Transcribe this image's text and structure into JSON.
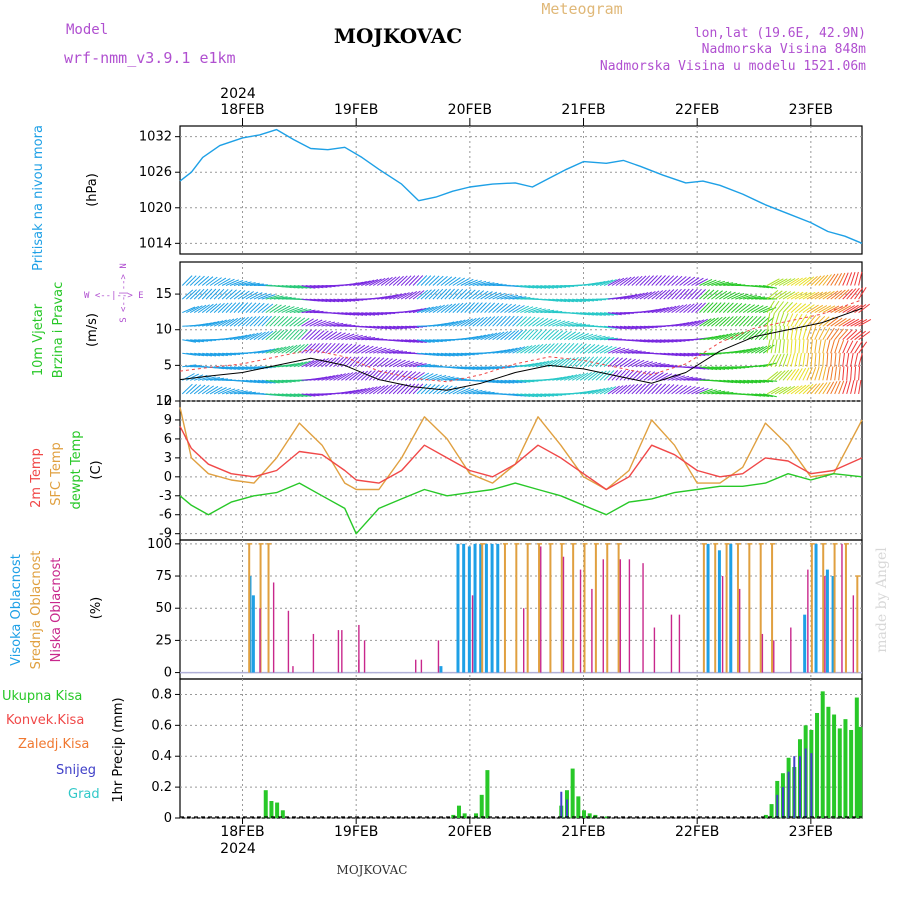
{
  "header": {
    "model_label": "Model",
    "model_name": "wrf-nmm_v3.9.1  e1km",
    "station": "MOJKOVAC",
    "product": "Meteogram",
    "coords": "lon,lat (19.6E, 42.9N)",
    "altitude": "Nadmorska Visina 848m",
    "model_altitude": "Nadmorska Visina u modelu 1521.06m"
  },
  "footer": {
    "station": "MOJKOVAC",
    "credit": "made by Angel"
  },
  "time_axis": {
    "year": "2024",
    "days": [
      "18FEB",
      "19FEB",
      "20FEB",
      "21FEB",
      "22FEB",
      "23FEB"
    ],
    "range_days": [
      -0.55,
      5.45
    ]
  },
  "colors": {
    "pressure": "#1ea0e6",
    "temp2m": "#f04848",
    "sfc_temp": "#e0a040",
    "dewpoint": "#28c828",
    "cloud_high": "#1ea0e6",
    "cloud_mid": "#e0a040",
    "cloud_low": "#c8288c",
    "precip_total": "#28c828",
    "precip_snow": "#4040c8",
    "purple_text": "#b050d0",
    "grid": "#999999"
  },
  "panels": {
    "pressure": {
      "label": "Pritisak na nivou mora",
      "unit": "(hPa)"
    },
    "wind": {
      "label1": "10m  Vjetar",
      "label2": "Brzina i Pravac",
      "unit": "(m/s)",
      "compass": "W <--|--> E",
      "compass_side": "S <--|--> N"
    },
    "temp": {
      "label1": "2m Temp",
      "label2": "SFC Temp",
      "label3": "dewpt Temp",
      "unit": "(C)"
    },
    "cloud": {
      "label1": "Visoka Oblacnost",
      "label2": "Srednja Oblacnost",
      "label3": "Niska Oblacnost",
      "unit": "(%)"
    },
    "precip": {
      "label1": "Ukupna Kisa",
      "label2": "Konvek.Kisa",
      "label3": "Zaledj.Kisa",
      "label4": "Snijeg",
      "label5": "Grad",
      "unit": "1hr Precip (mm)"
    }
  },
  "chart_data": [
    {
      "type": "line",
      "title": "Pritisak na nivou mora",
      "ylabel": "(hPa)",
      "ylim": [
        1012.2,
        1033.8
      ],
      "yticks": [
        1014,
        1020,
        1026,
        1032
      ],
      "x_days": [
        -0.55,
        -0.45,
        -0.35,
        -0.2,
        0.0,
        0.15,
        0.3,
        0.45,
        0.6,
        0.75,
        0.9,
        1.05,
        1.2,
        1.4,
        1.55,
        1.7,
        1.85,
        2.0,
        2.2,
        2.4,
        2.55,
        2.7,
        2.85,
        3.0,
        3.2,
        3.35,
        3.5,
        3.7,
        3.9,
        4.05,
        4.2,
        4.4,
        4.6,
        4.8,
        5.0,
        5.15,
        5.3,
        5.45
      ],
      "series": [
        {
          "values": [
            1024.5,
            1026,
            1028.5,
            1030.5,
            1031.8,
            1032.3,
            1033.2,
            1031.5,
            1030,
            1029.8,
            1030.2,
            1028.5,
            1026.5,
            1024,
            1021.2,
            1021.8,
            1022.8,
            1023.5,
            1024,
            1024.2,
            1023.5,
            1025,
            1026.5,
            1027.8,
            1027.5,
            1028,
            1027,
            1025.5,
            1024.2,
            1024.5,
            1023.8,
            1022.3,
            1020.5,
            1019,
            1017.5,
            1016,
            1015.2,
            1014
          ]
        }
      ]
    },
    {
      "type": "line",
      "title": "10m Vjetar Brzina i Pravac",
      "ylabel": "(m/s)",
      "ylim": [
        0,
        19.5
      ],
      "yticks": [
        0,
        5,
        10,
        15
      ],
      "x_days": [
        -0.55,
        -0.3,
        0.0,
        0.3,
        0.6,
        0.9,
        1.2,
        1.5,
        1.8,
        2.1,
        2.4,
        2.7,
        3.0,
        3.3,
        3.6,
        3.9,
        4.2,
        4.5,
        4.8,
        5.1,
        5.45
      ],
      "series": [
        {
          "name": "speed",
          "values": [
            3,
            3.5,
            4,
            5,
            6,
            5,
            3,
            2,
            1.5,
            2.5,
            4,
            5,
            4.5,
            3.5,
            2.5,
            4,
            7,
            9,
            10,
            11,
            13
          ]
        }
      ]
    },
    {
      "type": "line",
      "title": "Temp",
      "ylabel": "(C)",
      "ylim": [
        -10,
        12
      ],
      "yticks": [
        -9,
        -6,
        -3,
        0,
        3,
        6,
        9,
        12
      ],
      "x_days": [
        -0.55,
        -0.45,
        -0.3,
        -0.1,
        0.1,
        0.3,
        0.5,
        0.7,
        0.9,
        1.0,
        1.2,
        1.4,
        1.6,
        1.8,
        2.0,
        2.2,
        2.4,
        2.6,
        2.8,
        3.0,
        3.2,
        3.4,
        3.6,
        3.8,
        4.0,
        4.2,
        4.4,
        4.6,
        4.8,
        5.0,
        5.2,
        5.45
      ],
      "series": [
        {
          "name": "2m Temp",
          "values": [
            8,
            4.5,
            2,
            0.5,
            0,
            1,
            4,
            3.5,
            1,
            -0.5,
            -1,
            1,
            5,
            3,
            1,
            0,
            2,
            5,
            3,
            0.5,
            -2,
            0,
            5,
            3.5,
            1,
            0,
            0.5,
            3,
            2.5,
            0.5,
            1,
            3
          ]
        },
        {
          "name": "SFC Temp",
          "values": [
            11,
            3,
            0.5,
            -0.5,
            -1,
            3,
            8.5,
            5,
            -1,
            -2,
            -2,
            3,
            9.5,
            6,
            0.5,
            -1,
            2,
            9.5,
            5,
            0,
            -2,
            1,
            9,
            5,
            -1,
            -1,
            1.5,
            8.5,
            5,
            0,
            0.5,
            9
          ]
        },
        {
          "name": "dewpt Temp",
          "values": [
            -3,
            -4.5,
            -6,
            -4,
            -3,
            -2.5,
            -1,
            -3,
            -5,
            -9,
            -5,
            -3.5,
            -2,
            -3,
            -2.5,
            -2,
            -1,
            -2,
            -3,
            -4.5,
            -6,
            -4,
            -3.5,
            -2.5,
            -2,
            -1.5,
            -1.5,
            -1,
            0.5,
            -0.5,
            0.5,
            0
          ]
        }
      ]
    },
    {
      "type": "bar",
      "title": "Oblacnost",
      "ylabel": "(%)",
      "ylim": [
        -5,
        103
      ],
      "yticks": [
        0,
        25,
        50,
        75,
        100
      ],
      "series": [
        {
          "name": "Visoka Oblacnost",
          "bars": [
            [
              0.07,
              75
            ],
            [
              0.1,
              60
            ],
            [
              1.75,
              5
            ],
            [
              1.9,
              100
            ],
            [
              1.95,
              100
            ],
            [
              2.0,
              98
            ],
            [
              2.05,
              100
            ],
            [
              2.1,
              100
            ],
            [
              2.15,
              100
            ],
            [
              2.2,
              100
            ],
            [
              2.25,
              100
            ],
            [
              4.1,
              100
            ],
            [
              4.2,
              95
            ],
            [
              4.3,
              100
            ],
            [
              4.95,
              45
            ],
            [
              5.05,
              100
            ],
            [
              5.15,
              80
            ],
            [
              5.2,
              75
            ]
          ]
        },
        {
          "name": "Srednja Oblacnost",
          "bars": [
            [
              0.05,
              100
            ],
            [
              0.15,
              100
            ],
            [
              0.22,
              100
            ],
            [
              2.1,
              100
            ],
            [
              2.3,
              100
            ],
            [
              2.4,
              100
            ],
            [
              2.5,
              100
            ],
            [
              2.6,
              100
            ],
            [
              2.7,
              100
            ],
            [
              2.8,
              100
            ],
            [
              2.9,
              100
            ],
            [
              3.0,
              100
            ],
            [
              3.1,
              100
            ],
            [
              3.2,
              100
            ],
            [
              3.3,
              100
            ],
            [
              4.05,
              100
            ],
            [
              4.15,
              100
            ],
            [
              4.25,
              100
            ],
            [
              4.35,
              100
            ],
            [
              4.45,
              100
            ],
            [
              4.55,
              100
            ],
            [
              4.65,
              100
            ],
            [
              5.0,
              100
            ],
            [
              5.1,
              100
            ],
            [
              5.2,
              100
            ],
            [
              5.3,
              100
            ],
            [
              5.4,
              75
            ]
          ]
        },
        {
          "name": "Niska Oblacnost",
          "bars": [
            [
              0.13,
              50
            ],
            [
              0.25,
              70
            ],
            [
              0.38,
              48
            ],
            [
              0.42,
              5
            ],
            [
              0.6,
              30
            ],
            [
              0.82,
              33
            ],
            [
              0.85,
              33
            ],
            [
              1.0,
              10
            ],
            [
              1.0,
              37
            ],
            [
              1.05,
              25
            ],
            [
              1.5,
              10
            ],
            [
              1.55,
              10
            ],
            [
              1.7,
              25
            ],
            [
              2.0,
              60
            ],
            [
              2.45,
              50
            ],
            [
              2.6,
              98
            ],
            [
              2.8,
              90
            ],
            [
              2.95,
              80
            ],
            [
              3.05,
              65
            ],
            [
              3.15,
              88
            ],
            [
              3.3,
              88
            ],
            [
              3.38,
              88
            ],
            [
              3.5,
              85
            ],
            [
              3.6,
              35
            ],
            [
              3.75,
              45
            ],
            [
              3.82,
              45
            ],
            [
              4.2,
              75
            ],
            [
              4.35,
              65
            ],
            [
              4.55,
              30
            ],
            [
              4.65,
              25
            ],
            [
              4.8,
              35
            ],
            [
              4.95,
              80
            ],
            [
              5.1,
              75
            ],
            [
              5.25,
              100
            ],
            [
              5.35,
              60
            ]
          ]
        }
      ]
    },
    {
      "type": "bar",
      "title": "1hr Precip",
      "ylabel": "1hr Precip (mm)",
      "ylim": [
        0,
        0.9
      ],
      "yticks": [
        0,
        0.2,
        0.4,
        0.6,
        0.8
      ],
      "series": [
        {
          "name": "Ukupna Kisa",
          "bars": [
            [
              0.2,
              0.18
            ],
            [
              0.25,
              0.11
            ],
            [
              0.3,
              0.1
            ],
            [
              0.35,
              0.05
            ],
            [
              1.85,
              0.02
            ],
            [
              1.9,
              0.08
            ],
            [
              1.95,
              0.03
            ],
            [
              2.05,
              0.03
            ],
            [
              2.1,
              0.15
            ],
            [
              2.15,
              0.31
            ],
            [
              2.8,
              0.08
            ],
            [
              2.85,
              0.18
            ],
            [
              2.9,
              0.32
            ],
            [
              2.95,
              0.14
            ],
            [
              3.0,
              0.05
            ],
            [
              3.05,
              0.03
            ],
            [
              3.1,
              0.02
            ],
            [
              3.2,
              0.01
            ],
            [
              4.6,
              0.02
            ],
            [
              4.65,
              0.09
            ],
            [
              4.7,
              0.24
            ],
            [
              4.75,
              0.29
            ],
            [
              4.8,
              0.39
            ],
            [
              4.85,
              0.33
            ],
            [
              4.9,
              0.51
            ],
            [
              4.95,
              0.6
            ],
            [
              5.0,
              0.57
            ],
            [
              5.05,
              0.68
            ],
            [
              5.1,
              0.82
            ],
            [
              5.15,
              0.72
            ],
            [
              5.2,
              0.67
            ],
            [
              5.25,
              0.58
            ],
            [
              5.3,
              0.64
            ],
            [
              5.35,
              0.57
            ],
            [
              5.4,
              0.78
            ],
            [
              5.43,
              0.59
            ]
          ]
        },
        {
          "name": "Snijeg",
          "bars": [
            [
              2.8,
              0.17
            ],
            [
              2.85,
              0.12
            ],
            [
              4.7,
              0.15
            ],
            [
              4.75,
              0.2
            ],
            [
              4.8,
              0.3
            ],
            [
              4.85,
              0.4
            ],
            [
              4.9,
              0.4
            ],
            [
              4.95,
              0.45
            ],
            [
              5.0,
              0.42
            ]
          ]
        }
      ]
    }
  ]
}
